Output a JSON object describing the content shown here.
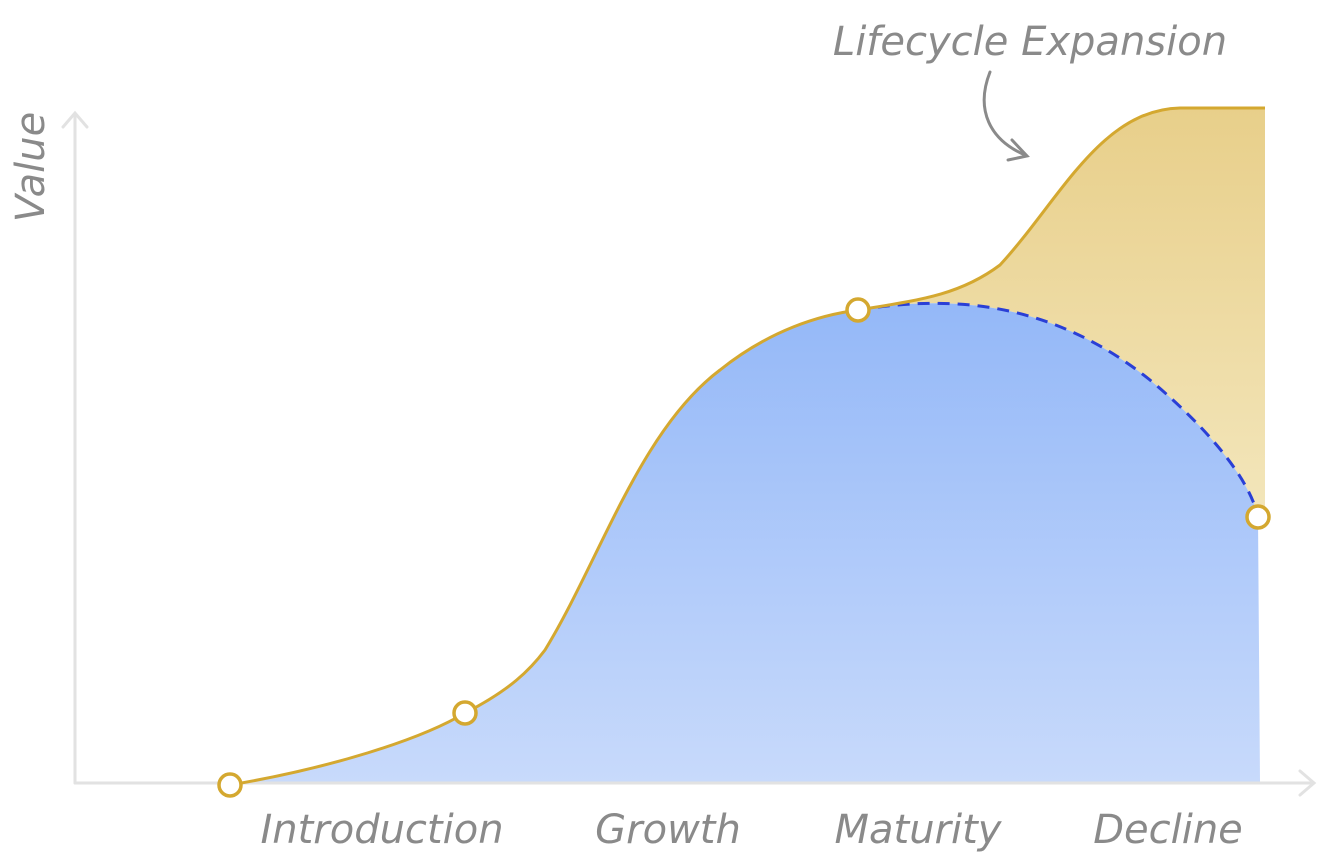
{
  "annotation": "Lifecycle Expansion",
  "y_axis_label": "Value",
  "stages": [
    "Introduction",
    "Growth",
    "Maturity",
    "Decline"
  ]
}
